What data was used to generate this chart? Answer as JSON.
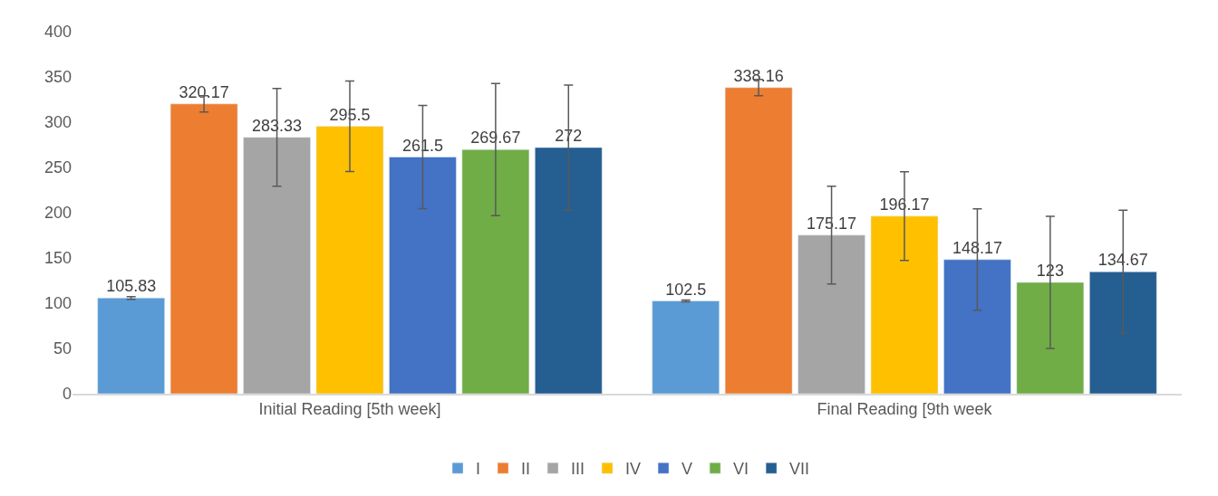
{
  "chart_data": {
    "type": "bar",
    "categories": [
      "Initial Reading [5th week]",
      "Final Reading [9th week"
    ],
    "series": [
      {
        "name": "I",
        "color": "#5b9bd5",
        "values": [
          105.83,
          102.5
        ],
        "errors": [
          1.5,
          1
        ]
      },
      {
        "name": "II",
        "color": "#ed7d31",
        "values": [
          320.17,
          338.16
        ],
        "errors": [
          9,
          9
        ]
      },
      {
        "name": "III",
        "color": "#a5a5a5",
        "values": [
          283.33,
          175.17
        ],
        "errors": [
          54,
          54
        ]
      },
      {
        "name": "IV",
        "color": "#ffc000",
        "values": [
          295.5,
          196.17
        ],
        "errors": [
          50,
          49
        ]
      },
      {
        "name": "V",
        "color": "#4472c4",
        "values": [
          261.5,
          148.17
        ],
        "errors": [
          57,
          56
        ]
      },
      {
        "name": "VI",
        "color": "#70ad47",
        "values": [
          269.67,
          123
        ],
        "errors": [
          73,
          73
        ]
      },
      {
        "name": "VII",
        "color": "#255e91",
        "values": [
          272,
          134.67
        ],
        "errors": [
          69,
          68
        ]
      }
    ],
    "ylim": [
      0,
      400
    ],
    "yticks": [
      0,
      50,
      100,
      150,
      200,
      250,
      300,
      350,
      400
    ],
    "grid": false,
    "legend": "bottom",
    "data_labels": true
  }
}
